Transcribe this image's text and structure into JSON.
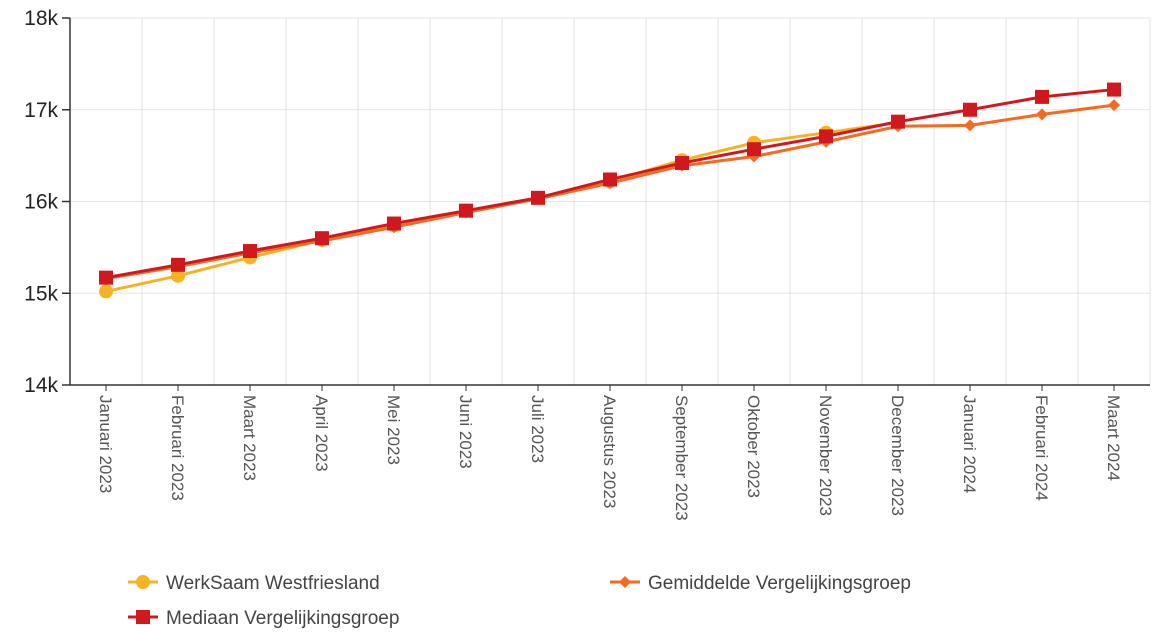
{
  "chart_data": {
    "type": "line",
    "categories": [
      "Januari 2023",
      "Februari 2023",
      "Maart 2023",
      "April 2023",
      "Mei 2023",
      "Juni 2023",
      "Juli 2023",
      "Augustus 2023",
      "September 2023",
      "Oktober 2023",
      "November 2023",
      "December 2023",
      "Januari 2024",
      "Februari 2024",
      "Maart 2024"
    ],
    "ylim": [
      14000,
      18000
    ],
    "yticks": [
      14000,
      15000,
      16000,
      17000,
      18000
    ],
    "ytick_labels": [
      "14k",
      "15k",
      "16k",
      "17k",
      "18k"
    ],
    "grid": true,
    "legend_position": "bottom",
    "series": [
      {
        "name": "WerkSaam Westfriesland",
        "color": "#f5b324",
        "marker": "circle",
        "values": [
          15020,
          15190,
          15390,
          15580,
          15740,
          15900,
          16040,
          16220,
          16450,
          16640,
          16750,
          16860,
          null,
          null,
          null
        ]
      },
      {
        "name": "Gemiddelde Vergelijkingsgroep",
        "color": "#f26b21",
        "marker": "diamond",
        "values": [
          15160,
          15290,
          15440,
          15570,
          15720,
          15880,
          16030,
          16200,
          16390,
          16490,
          16650,
          16820,
          16830,
          16950,
          17050
        ]
      },
      {
        "name": "Mediaan Vergelijkingsgroep",
        "color": "#d0191e",
        "marker": "square",
        "values": [
          15170,
          15310,
          15460,
          15600,
          15760,
          15900,
          16040,
          16240,
          16420,
          16570,
          16710,
          16870,
          17000,
          17140,
          17220
        ]
      }
    ]
  }
}
